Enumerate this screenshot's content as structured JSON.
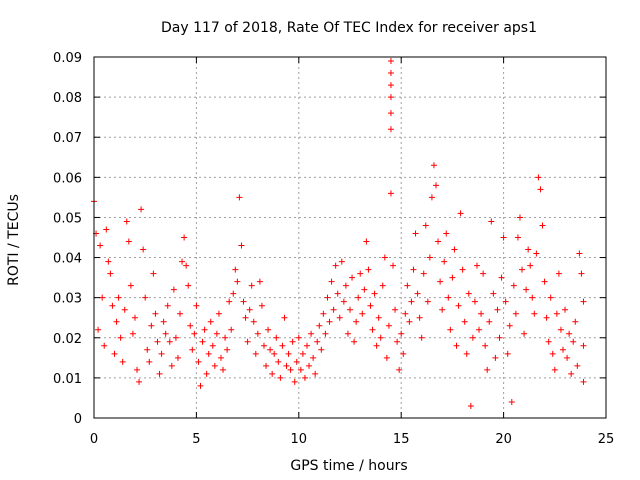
{
  "chart_data": {
    "type": "scatter",
    "title": "Day 117 of 2018, Rate Of TEC Index for receiver aps1",
    "xlabel": "GPS time / hours",
    "ylabel": "ROTI / TECUs",
    "xlim": [
      0,
      25
    ],
    "ylim": [
      0,
      0.09
    ],
    "grid": true,
    "xticks": [
      0,
      5,
      10,
      15,
      20,
      25
    ],
    "xtick_labels": [
      "0",
      "5",
      "10",
      "15",
      "20",
      "25"
    ],
    "yticks": [
      0,
      0.01,
      0.02,
      0.03,
      0.04,
      0.05,
      0.06,
      0.07,
      0.08,
      0.09
    ],
    "ytick_labels": [
      "0",
      "0.01",
      "0.02",
      "0.03",
      "0.04",
      "0.05",
      "0.06",
      "0.07",
      "0.08",
      "0.09"
    ],
    "marker": "+",
    "color": "#ff0000",
    "series": [
      {
        "name": "aps1",
        "points": [
          [
            0.0,
            0.054
          ],
          [
            0.1,
            0.046
          ],
          [
            0.2,
            0.022
          ],
          [
            0.3,
            0.043
          ],
          [
            0.4,
            0.03
          ],
          [
            0.5,
            0.018
          ],
          [
            0.6,
            0.047
          ],
          [
            0.7,
            0.039
          ],
          [
            0.8,
            0.036
          ],
          [
            0.9,
            0.028
          ],
          [
            1.0,
            0.016
          ],
          [
            1.1,
            0.024
          ],
          [
            1.2,
            0.03
          ],
          [
            1.3,
            0.02
          ],
          [
            1.4,
            0.014
          ],
          [
            1.5,
            0.027
          ],
          [
            1.6,
            0.049
          ],
          [
            1.7,
            0.044
          ],
          [
            1.8,
            0.033
          ],
          [
            1.9,
            0.021
          ],
          [
            2.0,
            0.025
          ],
          [
            2.1,
            0.012
          ],
          [
            2.2,
            0.009
          ],
          [
            2.3,
            0.052
          ],
          [
            2.4,
            0.042
          ],
          [
            2.5,
            0.03
          ],
          [
            2.6,
            0.017
          ],
          [
            2.7,
            0.014
          ],
          [
            2.8,
            0.023
          ],
          [
            2.9,
            0.036
          ],
          [
            3.0,
            0.026
          ],
          [
            3.1,
            0.019
          ],
          [
            3.2,
            0.011
          ],
          [
            3.3,
            0.016
          ],
          [
            3.4,
            0.024
          ],
          [
            3.5,
            0.021
          ],
          [
            3.6,
            0.028
          ],
          [
            3.7,
            0.019
          ],
          [
            3.8,
            0.013
          ],
          [
            3.9,
            0.032
          ],
          [
            4.0,
            0.02
          ],
          [
            4.1,
            0.015
          ],
          [
            4.2,
            0.026
          ],
          [
            4.3,
            0.039
          ],
          [
            4.4,
            0.045
          ],
          [
            4.5,
            0.038
          ],
          [
            4.6,
            0.033
          ],
          [
            4.7,
            0.023
          ],
          [
            4.8,
            0.017
          ],
          [
            4.9,
            0.021
          ],
          [
            5.0,
            0.028
          ],
          [
            5.1,
            0.014
          ],
          [
            5.2,
            0.008
          ],
          [
            5.3,
            0.019
          ],
          [
            5.4,
            0.022
          ],
          [
            5.5,
            0.011
          ],
          [
            5.6,
            0.016
          ],
          [
            5.7,
            0.024
          ],
          [
            5.8,
            0.018
          ],
          [
            5.9,
            0.013
          ],
          [
            6.0,
            0.021
          ],
          [
            6.1,
            0.026
          ],
          [
            6.2,
            0.015
          ],
          [
            6.3,
            0.012
          ],
          [
            6.4,
            0.02
          ],
          [
            6.5,
            0.017
          ],
          [
            6.6,
            0.029
          ],
          [
            6.7,
            0.022
          ],
          [
            6.8,
            0.031
          ],
          [
            6.9,
            0.037
          ],
          [
            7.0,
            0.034
          ],
          [
            7.1,
            0.055
          ],
          [
            7.2,
            0.043
          ],
          [
            7.3,
            0.029
          ],
          [
            7.4,
            0.025
          ],
          [
            7.5,
            0.019
          ],
          [
            7.6,
            0.027
          ],
          [
            7.7,
            0.033
          ],
          [
            7.8,
            0.024
          ],
          [
            7.9,
            0.016
          ],
          [
            8.0,
            0.021
          ],
          [
            8.1,
            0.034
          ],
          [
            8.2,
            0.028
          ],
          [
            8.3,
            0.018
          ],
          [
            8.4,
            0.013
          ],
          [
            8.5,
            0.022
          ],
          [
            8.6,
            0.017
          ],
          [
            8.7,
            0.011
          ],
          [
            8.8,
            0.016
          ],
          [
            8.9,
            0.02
          ],
          [
            9.0,
            0.014
          ],
          [
            9.1,
            0.01
          ],
          [
            9.2,
            0.018
          ],
          [
            9.3,
            0.025
          ],
          [
            9.4,
            0.013
          ],
          [
            9.5,
            0.016
          ],
          [
            9.6,
            0.012
          ],
          [
            9.7,
            0.019
          ],
          [
            9.8,
            0.009
          ],
          [
            9.9,
            0.014
          ],
          [
            10.0,
            0.02
          ],
          [
            10.1,
            0.012
          ],
          [
            10.2,
            0.016
          ],
          [
            10.3,
            0.01
          ],
          [
            10.4,
            0.018
          ],
          [
            10.5,
            0.013
          ],
          [
            10.6,
            0.021
          ],
          [
            10.7,
            0.015
          ],
          [
            10.8,
            0.011
          ],
          [
            10.9,
            0.019
          ],
          [
            11.0,
            0.023
          ],
          [
            11.1,
            0.017
          ],
          [
            11.2,
            0.026
          ],
          [
            11.3,
            0.021
          ],
          [
            11.4,
            0.03
          ],
          [
            11.5,
            0.024
          ],
          [
            11.6,
            0.034
          ],
          [
            11.7,
            0.027
          ],
          [
            11.8,
            0.038
          ],
          [
            11.9,
            0.031
          ],
          [
            12.0,
            0.025
          ],
          [
            12.1,
            0.039
          ],
          [
            12.2,
            0.029
          ],
          [
            12.3,
            0.033
          ],
          [
            12.4,
            0.021
          ],
          [
            12.5,
            0.027
          ],
          [
            12.6,
            0.035
          ],
          [
            12.7,
            0.019
          ],
          [
            12.8,
            0.024
          ],
          [
            12.9,
            0.03
          ],
          [
            13.0,
            0.036
          ],
          [
            13.1,
            0.026
          ],
          [
            13.2,
            0.032
          ],
          [
            13.3,
            0.044
          ],
          [
            13.4,
            0.037
          ],
          [
            13.5,
            0.028
          ],
          [
            13.6,
            0.022
          ],
          [
            13.7,
            0.031
          ],
          [
            13.8,
            0.018
          ],
          [
            13.9,
            0.025
          ],
          [
            14.0,
            0.02
          ],
          [
            14.1,
            0.033
          ],
          [
            14.2,
            0.04
          ],
          [
            14.3,
            0.015
          ],
          [
            14.4,
            0.023
          ],
          [
            14.5,
            0.089
          ],
          [
            14.5,
            0.086
          ],
          [
            14.5,
            0.083
          ],
          [
            14.5,
            0.08
          ],
          [
            14.5,
            0.076
          ],
          [
            14.5,
            0.072
          ],
          [
            14.5,
            0.056
          ],
          [
            14.6,
            0.038
          ],
          [
            14.7,
            0.027
          ],
          [
            14.8,
            0.019
          ],
          [
            14.9,
            0.012
          ],
          [
            15.0,
            0.021
          ],
          [
            15.1,
            0.016
          ],
          [
            15.2,
            0.026
          ],
          [
            15.3,
            0.033
          ],
          [
            15.4,
            0.024
          ],
          [
            15.5,
            0.029
          ],
          [
            15.6,
            0.037
          ],
          [
            15.7,
            0.046
          ],
          [
            15.8,
            0.031
          ],
          [
            15.9,
            0.025
          ],
          [
            16.0,
            0.02
          ],
          [
            16.1,
            0.036
          ],
          [
            16.2,
            0.048
          ],
          [
            16.3,
            0.029
          ],
          [
            16.4,
            0.04
          ],
          [
            16.5,
            0.055
          ],
          [
            16.6,
            0.063
          ],
          [
            16.7,
            0.058
          ],
          [
            16.8,
            0.044
          ],
          [
            16.9,
            0.034
          ],
          [
            17.0,
            0.027
          ],
          [
            17.1,
            0.039
          ],
          [
            17.2,
            0.046
          ],
          [
            17.3,
            0.03
          ],
          [
            17.4,
            0.022
          ],
          [
            17.5,
            0.035
          ],
          [
            17.6,
            0.042
          ],
          [
            17.7,
            0.018
          ],
          [
            17.8,
            0.028
          ],
          [
            17.9,
            0.051
          ],
          [
            18.0,
            0.037
          ],
          [
            18.1,
            0.024
          ],
          [
            18.2,
            0.016
          ],
          [
            18.3,
            0.031
          ],
          [
            18.4,
            0.003
          ],
          [
            18.5,
            0.02
          ],
          [
            18.6,
            0.029
          ],
          [
            18.7,
            0.038
          ],
          [
            18.8,
            0.022
          ],
          [
            18.9,
            0.026
          ],
          [
            19.0,
            0.036
          ],
          [
            19.1,
            0.018
          ],
          [
            19.2,
            0.012
          ],
          [
            19.3,
            0.024
          ],
          [
            19.4,
            0.049
          ],
          [
            19.5,
            0.031
          ],
          [
            19.6,
            0.015
          ],
          [
            19.7,
            0.027
          ],
          [
            19.8,
            0.02
          ],
          [
            19.9,
            0.035
          ],
          [
            20.0,
            0.045
          ],
          [
            20.1,
            0.029
          ],
          [
            20.2,
            0.016
          ],
          [
            20.3,
            0.023
          ],
          [
            20.4,
            0.004
          ],
          [
            20.5,
            0.033
          ],
          [
            20.6,
            0.026
          ],
          [
            20.7,
            0.045
          ],
          [
            20.8,
            0.05
          ],
          [
            20.9,
            0.037
          ],
          [
            21.0,
            0.021
          ],
          [
            21.1,
            0.032
          ],
          [
            21.2,
            0.042
          ],
          [
            21.3,
            0.038
          ],
          [
            21.4,
            0.03
          ],
          [
            21.5,
            0.026
          ],
          [
            21.6,
            0.041
          ],
          [
            21.7,
            0.06
          ],
          [
            21.8,
            0.057
          ],
          [
            21.9,
            0.048
          ],
          [
            22.0,
            0.034
          ],
          [
            22.1,
            0.025
          ],
          [
            22.2,
            0.019
          ],
          [
            22.3,
            0.03
          ],
          [
            22.4,
            0.016
          ],
          [
            22.5,
            0.012
          ],
          [
            22.6,
            0.026
          ],
          [
            22.7,
            0.036
          ],
          [
            22.8,
            0.022
          ],
          [
            22.9,
            0.017
          ],
          [
            23.0,
            0.027
          ],
          [
            23.1,
            0.015
          ],
          [
            23.2,
            0.021
          ],
          [
            23.3,
            0.011
          ],
          [
            23.4,
            0.019
          ],
          [
            23.5,
            0.024
          ],
          [
            23.6,
            0.013
          ],
          [
            23.7,
            0.041
          ],
          [
            23.8,
            0.036
          ],
          [
            23.9,
            0.029
          ],
          [
            23.9,
            0.018
          ],
          [
            23.9,
            0.009
          ]
        ]
      }
    ]
  }
}
